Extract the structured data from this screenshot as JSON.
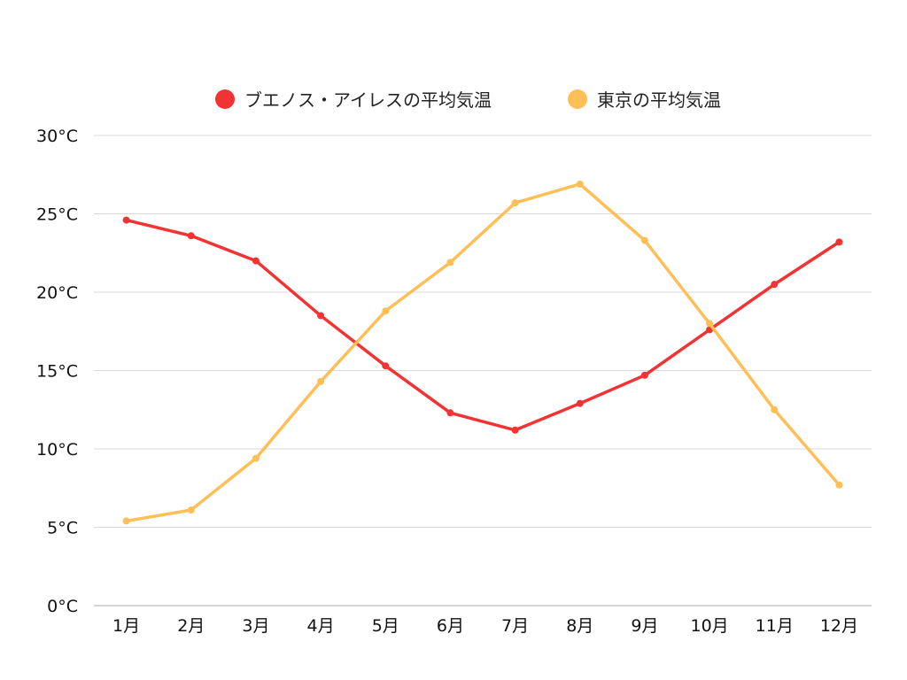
{
  "chart_data": {
    "type": "line",
    "title": "",
    "xlabel": "",
    "ylabel": "",
    "categories": [
      "1月",
      "2月",
      "3月",
      "4月",
      "5月",
      "6月",
      "7月",
      "8月",
      "9月",
      "10月",
      "11月",
      "12月"
    ],
    "y_ticks": [
      "0°C",
      "5°C",
      "10°C",
      "15°C",
      "20°C",
      "25°C",
      "30°C"
    ],
    "ylim": [
      0,
      30
    ],
    "grid": true,
    "legend_position": "top-center",
    "series": [
      {
        "name": "ブエノス・アイレスの平均気温",
        "color": "#f23333",
        "values": [
          24.6,
          23.6,
          22.0,
          18.5,
          15.3,
          12.3,
          11.2,
          12.9,
          14.7,
          17.6,
          20.5,
          23.2
        ]
      },
      {
        "name": "東京の平均気温",
        "color": "#ffbf57",
        "values": [
          5.4,
          6.1,
          9.4,
          14.3,
          18.8,
          21.9,
          25.7,
          26.9,
          23.3,
          18.0,
          12.5,
          7.7
        ]
      }
    ]
  }
}
